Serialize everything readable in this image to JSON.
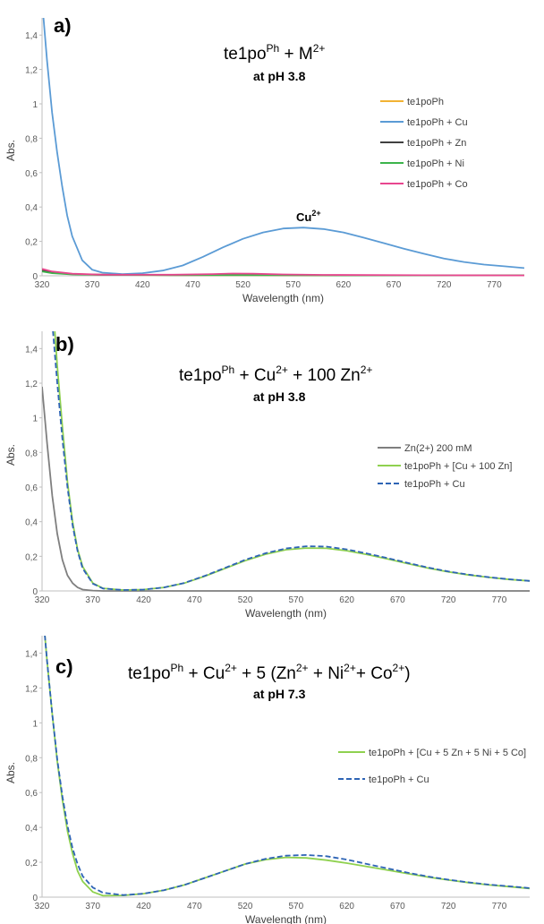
{
  "figure": {
    "panels": [
      {
        "letter": "a)",
        "title_main": "te1po",
        "title_sup1": "Ph",
        "title_rest": " + M",
        "title_sup2": "2+",
        "title_tail": "",
        "subtitle": "at pH 3.8",
        "annotation_text": "Cu",
        "annotation_sup": "2+"
      },
      {
        "letter": "b)",
        "title_main": "te1po",
        "title_sup1": "Ph",
        "title_rest": " + Cu",
        "title_sup2": "2+",
        "title_tail": " + 100 Zn",
        "title_sup3": "2+",
        "subtitle": "at pH 3.8"
      },
      {
        "letter": "c)",
        "title_main": "te1po",
        "title_sup1": "Ph",
        "title_rest": " + Cu",
        "title_sup2": "2+",
        "title_tail": " + 5 (Zn",
        "title_sup3": "2+",
        "title_tail2": " + Ni",
        "title_sup4": "2+",
        "title_tail3": "+ Co",
        "title_sup5": "2+",
        "title_tail4": ")",
        "subtitle": "at pH 7.3"
      }
    ]
  },
  "chart_data": [
    {
      "type": "line",
      "panel": "a)",
      "xlabel": "Wavelength (nm)",
      "ylabel": "Abs.",
      "xlim": [
        320,
        800
      ],
      "ylim": [
        0,
        1.5
      ],
      "xticks": [
        "320",
        "370",
        "420",
        "470",
        "520",
        "570",
        "620",
        "670",
        "720",
        "770"
      ],
      "yticks": [
        "0",
        "0,2",
        "0,4",
        "0,6",
        "0,8",
        "1",
        "1,2",
        "1,4"
      ],
      "legend_position": "right",
      "series": [
        {
          "name": "te1poPh",
          "color": "#f2b233",
          "dash": "solid",
          "x": [
            320,
            330,
            345,
            370,
            420,
            520,
            620,
            720,
            800
          ],
          "y": [
            0.035,
            0.02,
            0.012,
            0.007,
            0.004,
            0.003,
            0.002,
            0.002,
            0.002
          ]
        },
        {
          "name": "te1poPh + Cu",
          "color": "#5b9bd5",
          "dash": "solid",
          "x": [
            320,
            325,
            330,
            335,
            340,
            345,
            350,
            360,
            370,
            380,
            400,
            420,
            440,
            460,
            480,
            500,
            520,
            540,
            560,
            580,
            600,
            620,
            640,
            660,
            680,
            700,
            720,
            740,
            760,
            780,
            800
          ],
          "y": [
            1.6,
            1.25,
            0.95,
            0.72,
            0.52,
            0.35,
            0.23,
            0.09,
            0.035,
            0.018,
            0.01,
            0.015,
            0.03,
            0.06,
            0.11,
            0.165,
            0.215,
            0.252,
            0.275,
            0.28,
            0.272,
            0.252,
            0.222,
            0.19,
            0.158,
            0.128,
            0.1,
            0.08,
            0.065,
            0.055,
            0.045
          ]
        },
        {
          "name": "te1poPh + Zn",
          "color": "#404040",
          "dash": "solid",
          "x": [
            320,
            330,
            350,
            380,
            450,
            520,
            600,
            700,
            800
          ],
          "y": [
            0.03,
            0.018,
            0.01,
            0.006,
            0.004,
            0.004,
            0.003,
            0.002,
            0.002
          ]
        },
        {
          "name": "te1poPh + Ni",
          "color": "#3cb44b",
          "dash": "solid",
          "x": [
            320,
            330,
            350,
            380,
            450,
            520,
            600,
            700,
            800
          ],
          "y": [
            0.025,
            0.015,
            0.008,
            0.005,
            0.004,
            0.004,
            0.003,
            0.002,
            0.002
          ]
        },
        {
          "name": "te1poPh + Co",
          "color": "#e8468f",
          "dash": "solid",
          "x": [
            320,
            330,
            350,
            380,
            450,
            490,
            510,
            530,
            560,
            600,
            700,
            800
          ],
          "y": [
            0.04,
            0.025,
            0.012,
            0.006,
            0.006,
            0.01,
            0.013,
            0.012,
            0.008,
            0.005,
            0.003,
            0.002
          ]
        }
      ],
      "annotations": [
        {
          "x": 580,
          "y": 0.28
        }
      ]
    },
    {
      "type": "line",
      "panel": "b)",
      "xlabel": "Wavelength (nm)",
      "ylabel": "Abs.",
      "xlim": [
        320,
        800
      ],
      "ylim": [
        0,
        1.5
      ],
      "xticks": [
        "320",
        "370",
        "420",
        "470",
        "520",
        "570",
        "620",
        "670",
        "720",
        "770"
      ],
      "yticks": [
        "0",
        "0,2",
        "0,4",
        "0,6",
        "0,8",
        "1",
        "1,2",
        "1,4"
      ],
      "legend_position": "right",
      "series": [
        {
          "name": "Zn(2+) 200 mM",
          "color": "#7f7f7f",
          "dash": "solid",
          "x": [
            320,
            325,
            330,
            335,
            340,
            345,
            350,
            355,
            360,
            370,
            380,
            800
          ],
          "y": [
            1.18,
            0.85,
            0.55,
            0.33,
            0.18,
            0.09,
            0.045,
            0.02,
            0.008,
            0.002,
            0.0,
            0.0
          ]
        },
        {
          "name": "te1poPh + [Cu + 100 Zn]",
          "color": "#8fd14f",
          "dash": "solid",
          "x": [
            332,
            335,
            340,
            345,
            350,
            355,
            360,
            370,
            380,
            400,
            420,
            440,
            460,
            480,
            500,
            520,
            540,
            560,
            580,
            600,
            620,
            640,
            660,
            680,
            700,
            720,
            740,
            760,
            780,
            800
          ],
          "y": [
            1.55,
            1.3,
            0.95,
            0.63,
            0.4,
            0.24,
            0.14,
            0.045,
            0.015,
            0.005,
            0.008,
            0.02,
            0.045,
            0.085,
            0.13,
            0.175,
            0.212,
            0.238,
            0.248,
            0.246,
            0.232,
            0.21,
            0.185,
            0.158,
            0.132,
            0.11,
            0.092,
            0.078,
            0.066,
            0.058
          ]
        },
        {
          "name": "te1poPh + Cu",
          "color": "#2e64b5",
          "dash": "dashed",
          "x": [
            330,
            335,
            340,
            345,
            350,
            355,
            360,
            370,
            380,
            400,
            420,
            440,
            460,
            480,
            500,
            520,
            540,
            560,
            580,
            600,
            620,
            640,
            660,
            680,
            700,
            720,
            740,
            760,
            780,
            800
          ],
          "y": [
            1.55,
            1.2,
            0.88,
            0.6,
            0.38,
            0.23,
            0.13,
            0.042,
            0.014,
            0.005,
            0.008,
            0.02,
            0.046,
            0.087,
            0.133,
            0.18,
            0.218,
            0.245,
            0.258,
            0.256,
            0.24,
            0.216,
            0.19,
            0.162,
            0.135,
            0.112,
            0.094,
            0.079,
            0.067,
            0.058
          ]
        }
      ]
    },
    {
      "type": "line",
      "panel": "c)",
      "xlabel": "Wavelength (nm)",
      "ylabel": "Abs.",
      "xlim": [
        320,
        800
      ],
      "ylim": [
        0,
        1.5
      ],
      "xticks": [
        "320",
        "370",
        "420",
        "470",
        "520",
        "570",
        "620",
        "670",
        "720",
        "770"
      ],
      "yticks": [
        "0",
        "0,2",
        "0,4",
        "0,6",
        "0,8",
        "1",
        "1,2",
        "1,4"
      ],
      "legend_position": "right",
      "series": [
        {
          "name": "te1poPh + [Cu + 5 Zn + 5 Ni + 5 Co]",
          "color": "#8fd14f",
          "dash": "solid",
          "x": [
            322,
            325,
            330,
            335,
            340,
            345,
            350,
            355,
            360,
            370,
            380,
            400,
            420,
            440,
            460,
            480,
            500,
            520,
            540,
            560,
            580,
            600,
            620,
            640,
            660,
            680,
            700,
            720,
            740,
            760,
            780,
            800
          ],
          "y": [
            1.55,
            1.35,
            1.05,
            0.78,
            0.56,
            0.38,
            0.25,
            0.15,
            0.09,
            0.03,
            0.008,
            0.01,
            0.02,
            0.04,
            0.07,
            0.11,
            0.15,
            0.19,
            0.215,
            0.228,
            0.225,
            0.212,
            0.195,
            0.175,
            0.155,
            0.135,
            0.115,
            0.098,
            0.083,
            0.07,
            0.06,
            0.05
          ]
        },
        {
          "name": "te1poPh + Cu",
          "color": "#2e64b5",
          "dash": "dashed",
          "x": [
            322,
            325,
            330,
            335,
            340,
            345,
            350,
            355,
            360,
            370,
            380,
            400,
            420,
            440,
            460,
            480,
            500,
            520,
            540,
            560,
            580,
            600,
            620,
            640,
            660,
            680,
            700,
            720,
            740,
            760,
            780,
            800
          ],
          "y": [
            1.55,
            1.35,
            1.05,
            0.79,
            0.58,
            0.41,
            0.28,
            0.19,
            0.12,
            0.055,
            0.025,
            0.012,
            0.02,
            0.04,
            0.07,
            0.11,
            0.15,
            0.19,
            0.22,
            0.238,
            0.242,
            0.235,
            0.215,
            0.19,
            0.165,
            0.14,
            0.118,
            0.1,
            0.085,
            0.072,
            0.062,
            0.052
          ]
        }
      ]
    }
  ]
}
